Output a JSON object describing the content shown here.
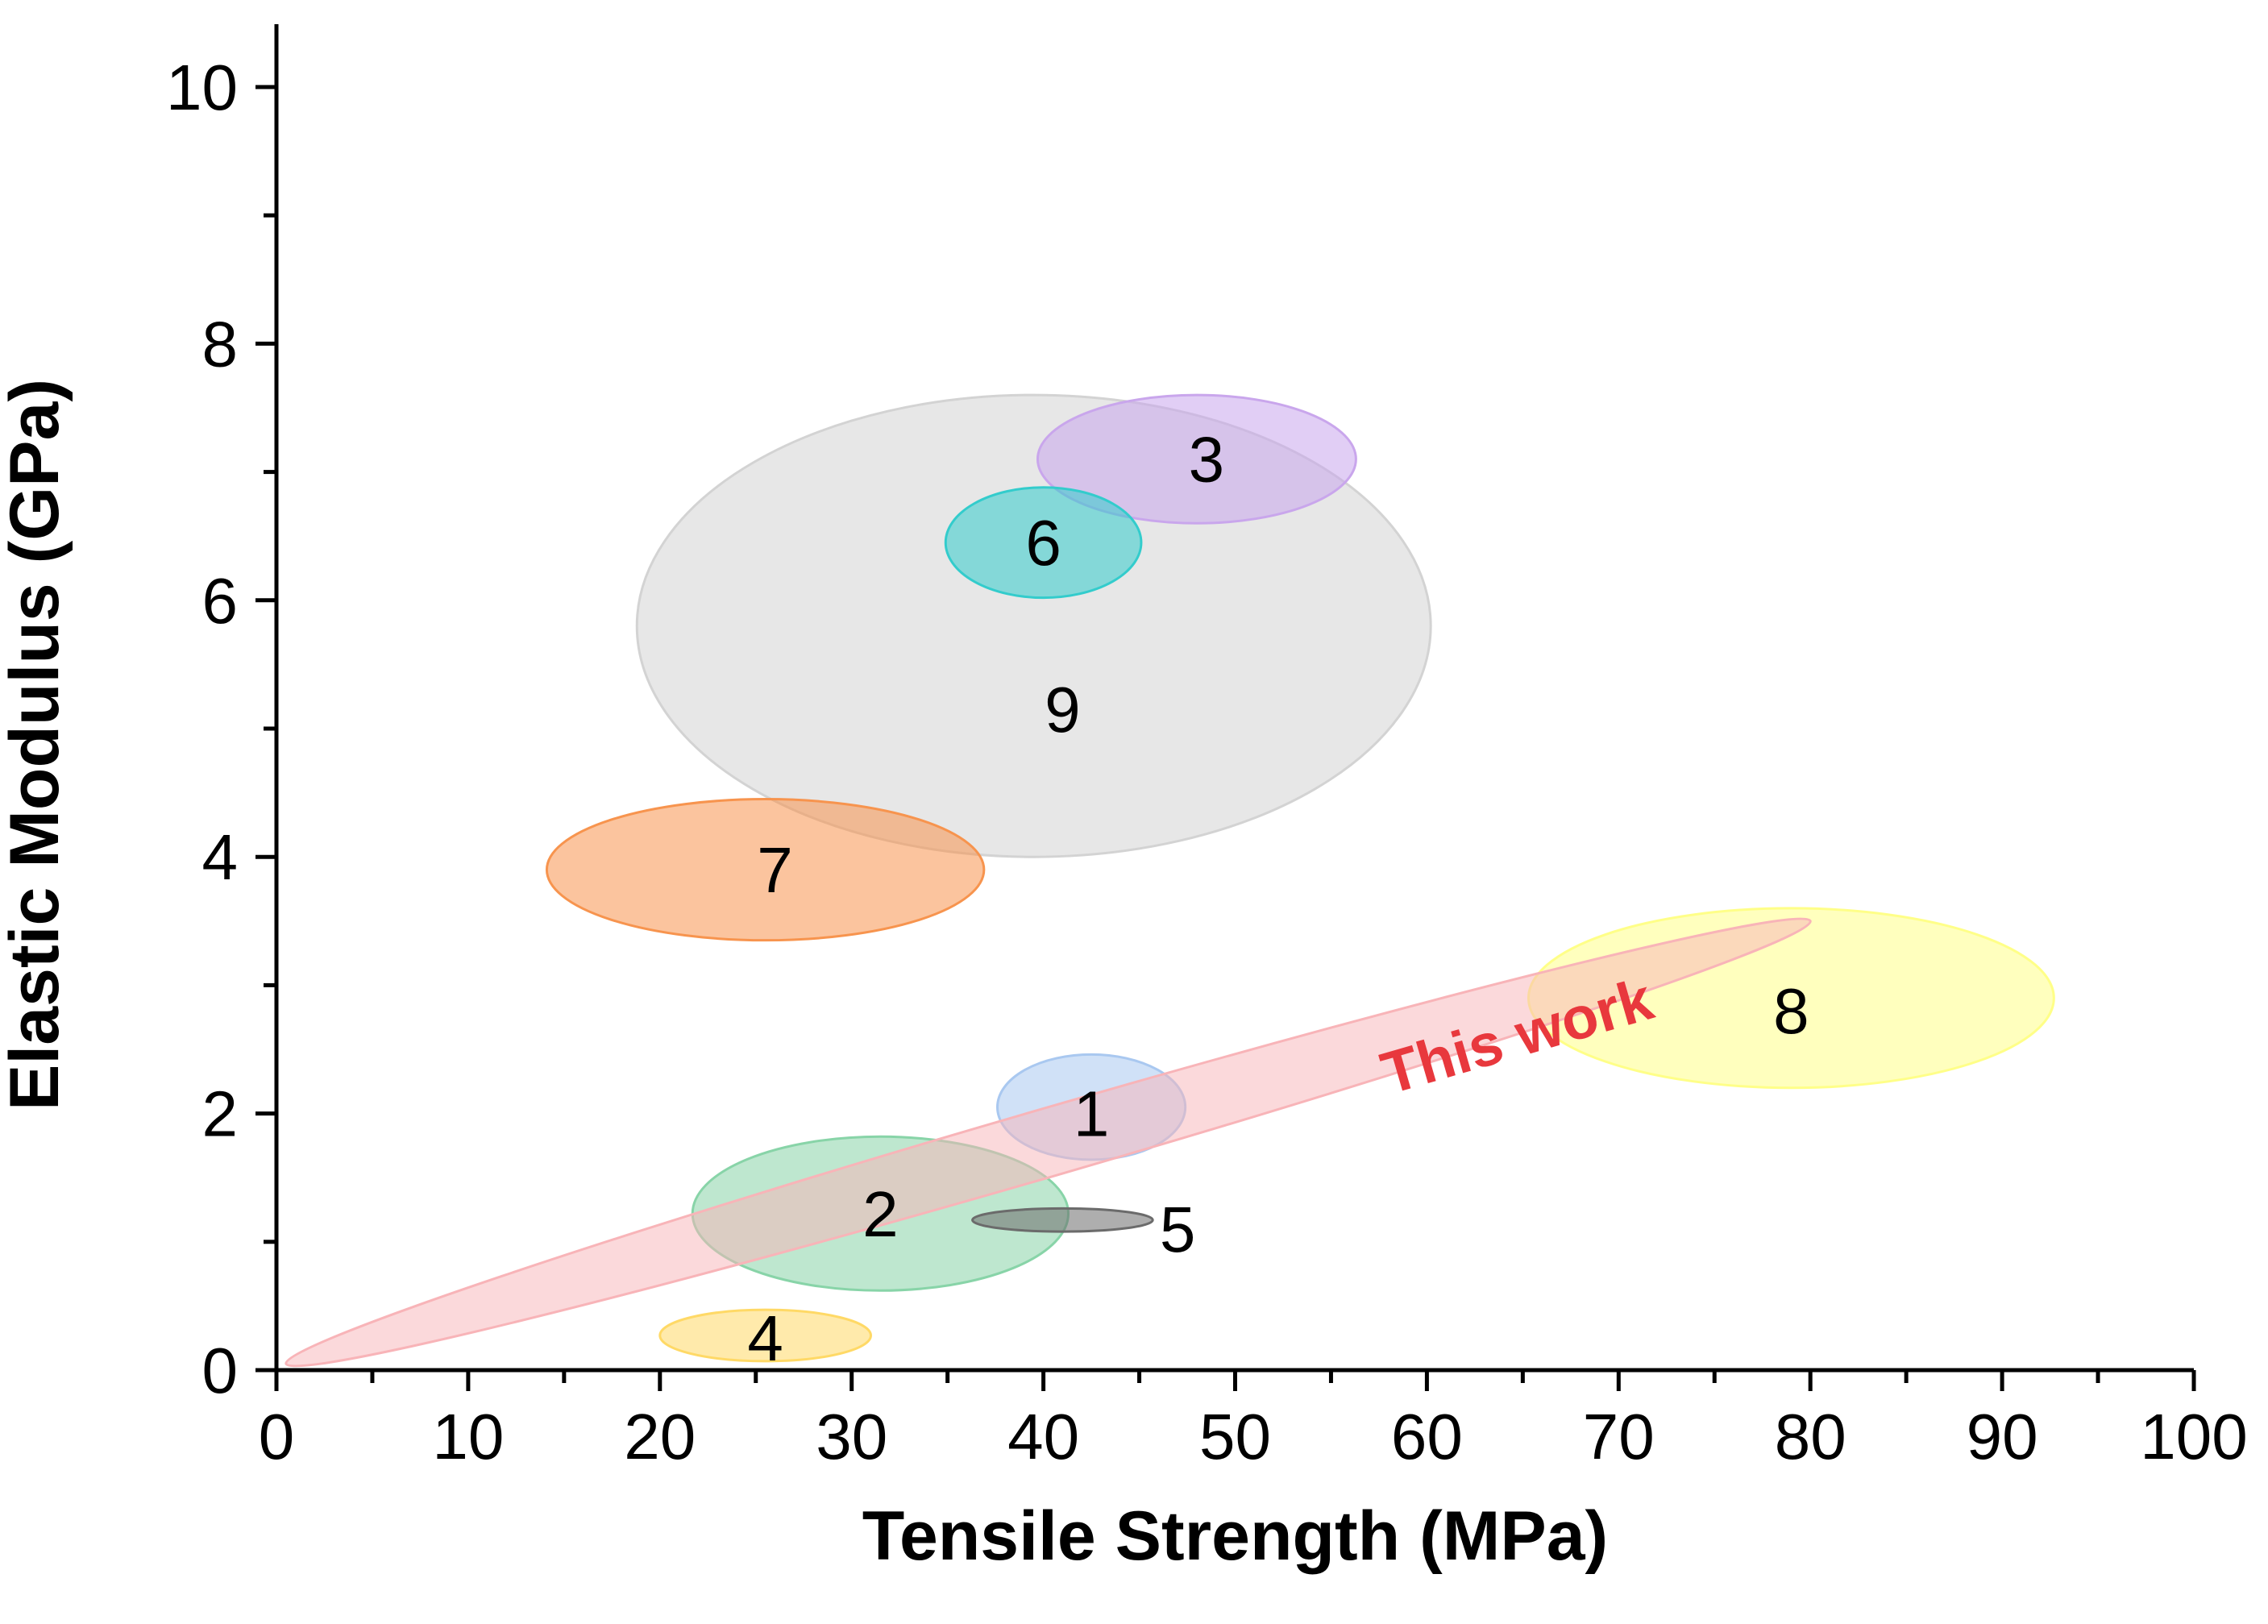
{
  "chart_data": {
    "type": "scatter",
    "title": "",
    "xlabel": "Tensile Strength (MPa)",
    "ylabel": "Elastic Modulus (GPa)",
    "xlim": [
      0,
      100
    ],
    "ylim": [
      0,
      10.5
    ],
    "x_ticks": [
      0,
      10,
      20,
      30,
      40,
      50,
      60,
      70,
      80,
      90,
      100
    ],
    "y_ticks": [
      0,
      2,
      4,
      6,
      8,
      10
    ],
    "x_tick_labels": [
      "0",
      "10",
      "20",
      "30",
      "40",
      "50",
      "60",
      "70",
      "80",
      "90",
      "100"
    ],
    "y_tick_labels": [
      "0",
      "2",
      "4",
      "6",
      "8",
      "10"
    ],
    "grid": false,
    "series": [
      {
        "name": "9",
        "cx": 39.5,
        "cy": 5.8,
        "rx": 20.7,
        "ry": 1.8,
        "color": "#d3d3d3",
        "label_x": 41,
        "label_y": 5.15
      },
      {
        "name": "3",
        "cx": 48.0,
        "cy": 7.1,
        "rx": 8.3,
        "ry": 0.5,
        "color": "#c9a6ec",
        "label_x": 48.5,
        "label_y": 7.1
      },
      {
        "name": "6",
        "cx": 40.0,
        "cy": 6.45,
        "rx": 5.1,
        "ry": 0.43,
        "color": "#33cccc",
        "label_x": 40,
        "label_y": 6.45
      },
      {
        "name": "7",
        "cx": 25.5,
        "cy": 3.9,
        "rx": 11.4,
        "ry": 0.55,
        "color": "#f7944e",
        "label_x": 26,
        "label_y": 3.9
      },
      {
        "name": "8",
        "cx": 79.0,
        "cy": 2.9,
        "rx": 13.7,
        "ry": 0.7,
        "color": "#ffff88",
        "label_x": 79,
        "label_y": 2.8
      },
      {
        "name": "1",
        "cx": 42.5,
        "cy": 2.05,
        "rx": 4.9,
        "ry": 0.41,
        "color": "#a9c8f0",
        "label_x": 42.5,
        "label_y": 2.0
      },
      {
        "name": "2",
        "cx": 31.5,
        "cy": 1.22,
        "rx": 9.8,
        "ry": 0.6,
        "color": "#88d4a8",
        "label_x": 31.5,
        "label_y": 1.22
      },
      {
        "name": "5",
        "cx": 41.0,
        "cy": 1.17,
        "rx": 4.7,
        "ry": 0.09,
        "color": "#6b6b6b",
        "label_x": 47,
        "label_y": 1.1
      },
      {
        "name": "4",
        "cx": 25.5,
        "cy": 0.27,
        "rx": 5.5,
        "ry": 0.2,
        "color": "#ffd966",
        "label_x": 25.5,
        "label_y": 0.25
      }
    ],
    "highlight": {
      "name": "This work",
      "x_start": 0.5,
      "y_start": 0.05,
      "x_end": 80.0,
      "y_end": 3.5,
      "color": "#f8b4b8",
      "label_x": 65,
      "label_y": 2.45
    }
  }
}
